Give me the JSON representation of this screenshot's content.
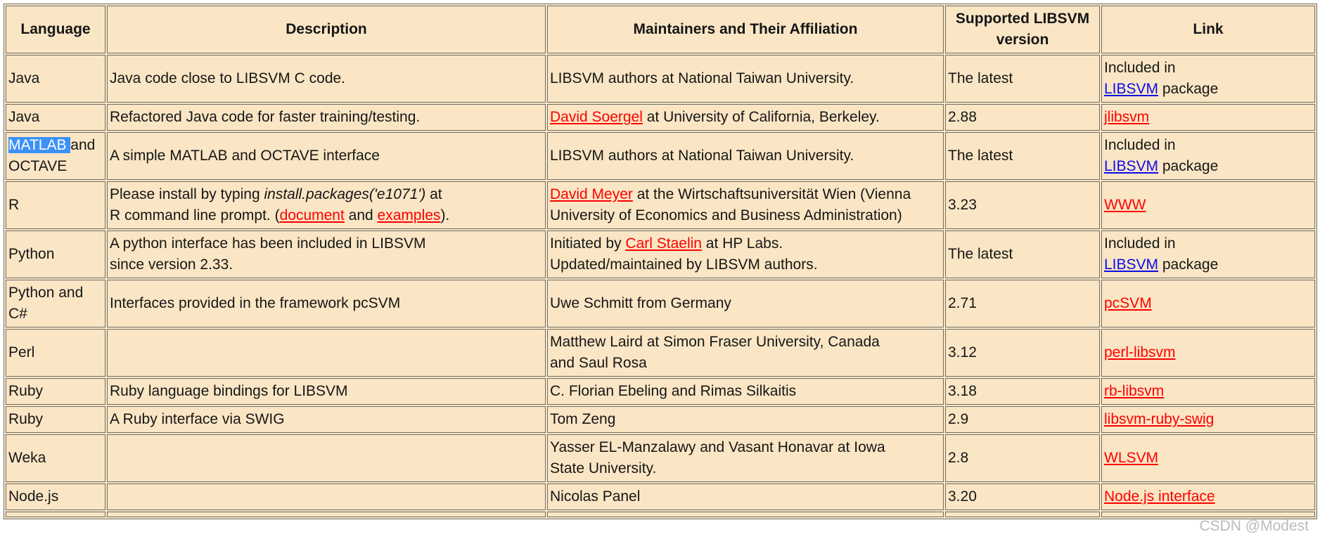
{
  "colors": {
    "table_bg": "#fae6c5",
    "border": "#6d6d64",
    "text": "#161616",
    "red_link": "#ff0000",
    "blue_link": "#0b0bee",
    "selection_bg": "#3c91f7",
    "selection_text": "#ffffff"
  },
  "watermark": "CSDN @Modest",
  "table": {
    "headers": [
      "Language",
      "Description",
      "Maintainers and Their Affiliation",
      "Supported LIBSVM version",
      "Link"
    ],
    "rows": [
      {
        "cells": [
          [
            {
              "t": "Java"
            }
          ],
          [
            {
              "t": "Java code close to LIBSVM C code."
            }
          ],
          [
            {
              "t": "LIBSVM authors at National Taiwan University."
            }
          ],
          [
            {
              "t": "The latest"
            }
          ],
          [
            {
              "t": "Included in"
            },
            {
              "type": "br"
            },
            {
              "t": "LIBSVM",
              "type": "blue"
            },
            {
              "t": " package"
            }
          ]
        ]
      },
      {
        "cells": [
          [
            {
              "t": "Java"
            }
          ],
          [
            {
              "t": "Refactored Java code for faster training/testing."
            }
          ],
          [
            {
              "t": "David Soergel",
              "type": "red"
            },
            {
              "t": " at University of California, Berkeley."
            }
          ],
          [
            {
              "t": "2.88"
            }
          ],
          [
            {
              "t": "jlibsvm",
              "type": "red"
            }
          ]
        ]
      },
      {
        "cells": [
          [
            {
              "t": "MATLAB ",
              "type": "sel"
            },
            {
              "t": "and OCTAVE"
            }
          ],
          [
            {
              "t": "A simple MATLAB and OCTAVE interface"
            }
          ],
          [
            {
              "t": "LIBSVM authors at National Taiwan University."
            }
          ],
          [
            {
              "t": "The latest"
            }
          ],
          [
            {
              "t": "Included in"
            },
            {
              "type": "br"
            },
            {
              "t": "LIBSVM",
              "type": "blue"
            },
            {
              "t": " package"
            }
          ]
        ]
      },
      {
        "cells": [
          [
            {
              "t": "R"
            }
          ],
          [
            {
              "t": "Please install by typing "
            },
            {
              "t": "install.packages('e1071')",
              "type": "i"
            },
            {
              "t": " at"
            },
            {
              "type": "br"
            },
            {
              "t": "R command line prompt. ("
            },
            {
              "t": "document",
              "type": "red"
            },
            {
              "t": " and "
            },
            {
              "t": "examples",
              "type": "red"
            },
            {
              "t": ")."
            }
          ],
          [
            {
              "t": "David Meyer",
              "type": "red"
            },
            {
              "t": " at the Wirtschaftsuniversität Wien (Vienna University of Economics and Business Administration)"
            }
          ],
          [
            {
              "t": "3.23"
            }
          ],
          [
            {
              "t": "WWW",
              "type": "red"
            }
          ]
        ]
      },
      {
        "cells": [
          [
            {
              "t": "Python"
            }
          ],
          [
            {
              "t": "A python interface has been included in LIBSVM"
            },
            {
              "type": "br"
            },
            {
              "t": "since version 2.33."
            }
          ],
          [
            {
              "t": "Initiated by "
            },
            {
              "t": "Carl Staelin",
              "type": "red"
            },
            {
              "t": " at HP Labs."
            },
            {
              "type": "br"
            },
            {
              "t": "Updated/maintained by LIBSVM authors."
            }
          ],
          [
            {
              "t": "The latest"
            }
          ],
          [
            {
              "t": "Included in"
            },
            {
              "type": "br"
            },
            {
              "t": "LIBSVM",
              "type": "blue"
            },
            {
              "t": " package"
            }
          ]
        ]
      },
      {
        "cells": [
          [
            {
              "t": "Python and C#"
            }
          ],
          [
            {
              "t": "Interfaces provided in the framework pcSVM"
            }
          ],
          [
            {
              "t": "Uwe Schmitt from Germany"
            }
          ],
          [
            {
              "t": "2.71"
            }
          ],
          [
            {
              "t": "pcSVM",
              "type": "red"
            }
          ]
        ]
      },
      {
        "cells": [
          [
            {
              "t": "Perl"
            }
          ],
          [],
          [
            {
              "t": "Matthew Laird at Simon Fraser University, Canada"
            },
            {
              "type": "br"
            },
            {
              "t": "and Saul Rosa"
            }
          ],
          [
            {
              "t": "3.12"
            }
          ],
          [
            {
              "t": "perl-libsvm",
              "type": "red"
            }
          ]
        ]
      },
      {
        "cells": [
          [
            {
              "t": "Ruby"
            }
          ],
          [
            {
              "t": "Ruby language bindings for LIBSVM"
            }
          ],
          [
            {
              "t": "C. Florian Ebeling and Rimas Silkaitis"
            }
          ],
          [
            {
              "t": "3.18"
            }
          ],
          [
            {
              "t": "rb-libsvm",
              "type": "red"
            }
          ]
        ]
      },
      {
        "cells": [
          [
            {
              "t": "Ruby"
            }
          ],
          [
            {
              "t": "A Ruby interface via SWIG"
            }
          ],
          [
            {
              "t": "Tom Zeng"
            }
          ],
          [
            {
              "t": "2.9"
            }
          ],
          [
            {
              "t": "libsvm-ruby-swig",
              "type": "red"
            }
          ]
        ]
      },
      {
        "cells": [
          [
            {
              "t": "Weka"
            }
          ],
          [],
          [
            {
              "t": "Yasser EL-Manzalawy and Vasant Honavar at Iowa"
            },
            {
              "type": "br"
            },
            {
              "t": "State University."
            }
          ],
          [
            {
              "t": "2.8"
            }
          ],
          [
            {
              "t": "WLSVM",
              "type": "red"
            }
          ]
        ]
      },
      {
        "cells": [
          [
            {
              "t": "Node.js"
            }
          ],
          [],
          [
            {
              "t": "Nicolas Panel"
            }
          ],
          [
            {
              "t": "3.20"
            }
          ],
          [
            {
              "t": "Node.js interface",
              "type": "red"
            }
          ]
        ]
      },
      {
        "cells": [
          [],
          [],
          [],
          [],
          []
        ]
      }
    ]
  }
}
